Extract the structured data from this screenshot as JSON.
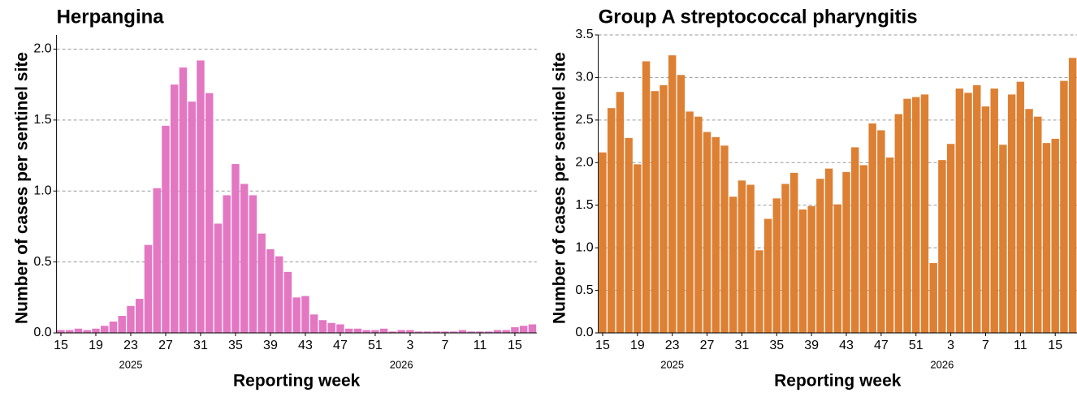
{
  "chart_data": [
    {
      "type": "bar",
      "title": "Herpangina",
      "xlabel": "Reporting week",
      "ylabel": "Number of cases per sentinel site",
      "year_labels": [
        "2025",
        "2026"
      ],
      "categories": [
        15,
        null,
        null,
        null,
        19,
        null,
        null,
        null,
        23,
        null,
        null,
        null,
        27,
        null,
        null,
        null,
        31,
        null,
        null,
        null,
        35,
        null,
        null,
        null,
        39,
        null,
        null,
        null,
        43,
        null,
        null,
        null,
        47,
        null,
        null,
        null,
        51,
        null,
        null,
        null,
        3,
        null,
        null,
        null,
        7,
        null,
        null,
        null,
        11,
        null,
        null,
        null,
        15,
        null,
        null
      ],
      "values": [
        0.02,
        0.02,
        0.03,
        0.02,
        0.03,
        0.05,
        0.08,
        0.12,
        0.19,
        0.24,
        0.62,
        1.02,
        1.46,
        1.75,
        1.87,
        1.63,
        1.92,
        1.69,
        0.77,
        0.97,
        1.19,
        1.05,
        0.97,
        0.7,
        0.59,
        0.54,
        0.43,
        0.25,
        0.26,
        0.13,
        0.09,
        0.07,
        0.06,
        0.03,
        0.03,
        0.02,
        0.02,
        0.03,
        0.01,
        0.02,
        0.02,
        0.01,
        0.01,
        0.01,
        0.01,
        0.01,
        0.02,
        0.01,
        0.01,
        0.01,
        0.02,
        0.02,
        0.04,
        0.05,
        0.06
      ],
      "color": "#e377c2",
      "ylim": [
        0,
        2.1
      ],
      "yticks": [
        {
          "value": 0,
          "label": "0.0"
        },
        {
          "value": 0.5,
          "label": "0.5"
        },
        {
          "value": 1,
          "label": "1.0"
        },
        {
          "value": 1.5,
          "label": "1.5"
        },
        {
          "value": 2,
          "label": "2.0"
        }
      ],
      "grid": true
    },
    {
      "type": "bar",
      "title": "Group A streptococcal pharyngitis",
      "xlabel": "Reporting week",
      "ylabel": "Number of cases per sentinel site",
      "year_labels": [
        "2025",
        "2026"
      ],
      "categories": [
        15,
        null,
        null,
        null,
        19,
        null,
        null,
        null,
        23,
        null,
        null,
        null,
        27,
        null,
        null,
        null,
        31,
        null,
        null,
        null,
        35,
        null,
        null,
        null,
        39,
        null,
        null,
        null,
        43,
        null,
        null,
        null,
        47,
        null,
        null,
        null,
        51,
        null,
        null,
        null,
        3,
        null,
        null,
        null,
        7,
        null,
        null,
        null,
        11,
        null,
        null,
        null,
        15,
        null,
        null
      ],
      "values": [
        2.12,
        2.64,
        2.83,
        2.29,
        1.98,
        3.19,
        2.84,
        2.91,
        3.26,
        3.03,
        2.6,
        2.54,
        2.36,
        2.3,
        2.2,
        1.6,
        1.79,
        1.74,
        0.97,
        1.34,
        1.58,
        1.75,
        1.88,
        1.45,
        1.49,
        1.81,
        1.93,
        1.51,
        1.89,
        2.18,
        1.97,
        2.46,
        2.38,
        2.06,
        2.57,
        2.75,
        2.77,
        2.8,
        0.82,
        2.03,
        2.22,
        2.87,
        2.82,
        2.91,
        2.66,
        2.87,
        2.21,
        2.8,
        2.95,
        2.63,
        2.54,
        2.23,
        2.28,
        2.96,
        3.23
      ],
      "color": "#dd8033",
      "ylim": [
        0,
        3.5
      ],
      "yticks": [
        {
          "value": 0,
          "label": "0.0"
        },
        {
          "value": 0.5,
          "label": "0.5"
        },
        {
          "value": 1,
          "label": "1.0"
        },
        {
          "value": 1.5,
          "label": "1.5"
        },
        {
          "value": 2,
          "label": "2.0"
        },
        {
          "value": 2.5,
          "label": "2.5"
        },
        {
          "value": 3,
          "label": "3.0"
        },
        {
          "value": 3.5,
          "label": "3.5"
        }
      ],
      "grid": true
    }
  ]
}
